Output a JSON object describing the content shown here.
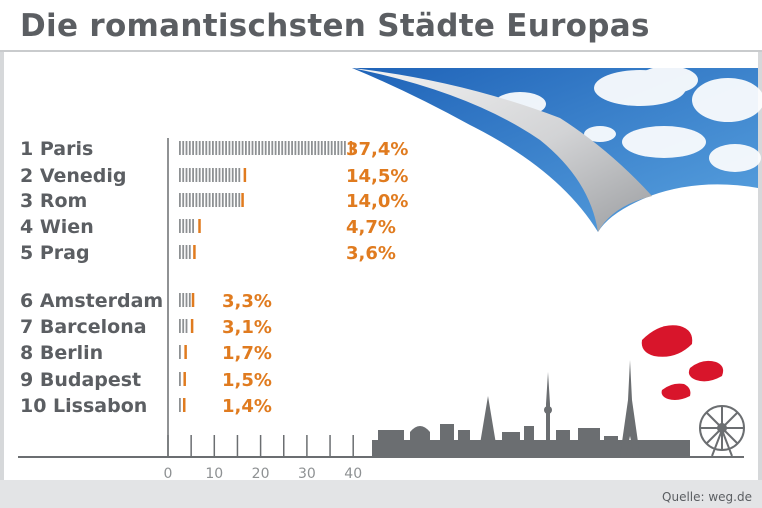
{
  "title": "Die romantischsten Städte Europas",
  "source": "Quelle: weg.de",
  "colors": {
    "text": "#5b5e62",
    "accent": "#e07b1f",
    "bar_gray": "#8e9193",
    "axis": "#6b6e71"
  },
  "chart_data": {
    "type": "bar",
    "orientation": "horizontal",
    "title": "Die romantischsten Städte Europas",
    "categories": [
      "1 Paris",
      "2 Venedig",
      "3 Rom",
      "4 Wien",
      "5 Prag",
      "6 Amsterdam",
      "7 Barcelona",
      "8 Berlin",
      "9 Budapest",
      "10 Lissabon"
    ],
    "values": [
      37.4,
      14.5,
      14.0,
      4.7,
      3.6,
      3.3,
      3.1,
      1.7,
      1.5,
      1.4
    ],
    "value_labels": [
      "37,4%",
      "14,5%",
      "14,0%",
      "4,7%",
      "3,6%",
      "3,3%",
      "3,1%",
      "1,7%",
      "1,5%",
      "1,4%"
    ],
    "xticks": [
      "0",
      "10",
      "20",
      "30",
      "40"
    ],
    "xlim": [
      0,
      40
    ],
    "grid": false
  }
}
